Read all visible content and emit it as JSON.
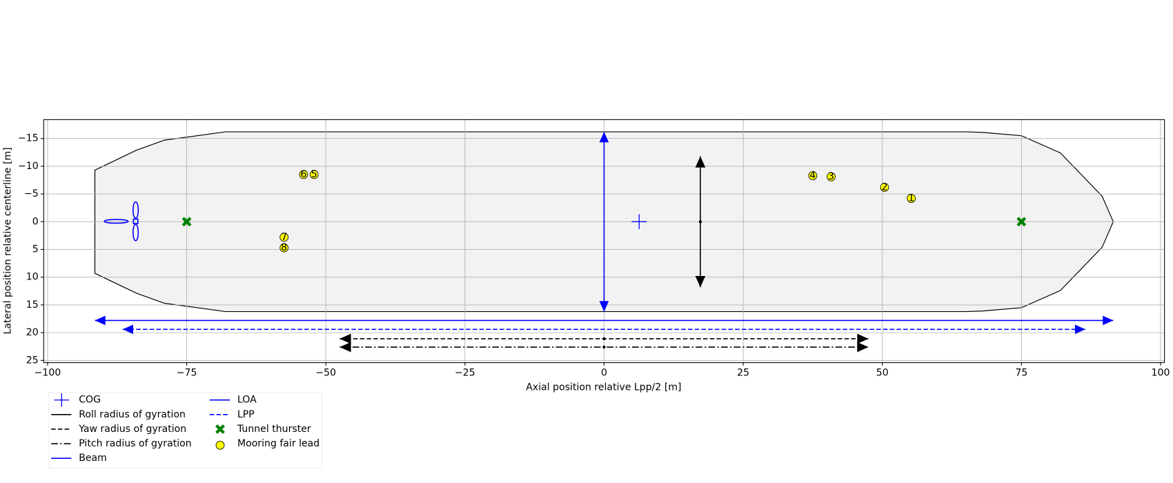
{
  "chart_data": {
    "type": "scatter",
    "xlabel": "Axial position relative Lpp/2 [m]",
    "ylabel": "Lateral position relative centerline [m]",
    "xlim": [
      -100.7,
      100.7
    ],
    "ylim": [
      -18.4,
      25.4
    ],
    "y_inverted": true,
    "grid": true,
    "xticks": [
      {
        "value": -100,
        "label": "−100"
      },
      {
        "value": -75,
        "label": "−75"
      },
      {
        "value": -50,
        "label": "−50"
      },
      {
        "value": -25,
        "label": "−25"
      },
      0,
      25,
      50,
      75,
      100
    ],
    "yticks": [
      {
        "value": -15,
        "label": "−15"
      },
      {
        "value": -10,
        "label": "−10"
      },
      {
        "value": -5,
        "label": "−5"
      },
      0,
      5,
      10,
      15,
      20,
      25
    ],
    "hull": {
      "color": "#f2f2f2",
      "x": [
        -91.5,
        -84,
        -79,
        -68,
        65,
        68,
        75,
        82,
        89.5,
        91.5,
        89.5,
        82,
        75,
        68,
        65,
        -68,
        -79,
        -84,
        -91.5
      ],
      "y": [
        -9.3,
        -12.9,
        -14.7,
        -16.2,
        -16.2,
        -16.1,
        -15.5,
        -12.4,
        -4.6,
        0,
        4.6,
        12.4,
        15.5,
        16.1,
        16.2,
        16.2,
        14.7,
        12.9,
        9.3
      ]
    },
    "series": [
      {
        "name": "COG",
        "kind": "plus",
        "color": "#0000ff",
        "x": [
          6.3
        ],
        "y": [
          0
        ]
      },
      {
        "name": "Roll radius of gyration",
        "kind": "vdim",
        "dash": "solid",
        "color": "#000000",
        "x": [
          17.3,
          17.3
        ],
        "y": [
          -11.8,
          11.8
        ]
      },
      {
        "name": "Yaw radius of gyration",
        "kind": "hdim",
        "dash": "dashed",
        "color": "#000000",
        "x": [
          -47.5,
          47.5
        ],
        "y": [
          21.1,
          21.1
        ]
      },
      {
        "name": "Pitch radius of gyration",
        "kind": "hdim",
        "dash": "dashdot",
        "color": "#000000",
        "x": [
          -47.5,
          47.5
        ],
        "y": [
          22.6,
          22.6
        ]
      },
      {
        "name": "Beam",
        "kind": "vdim",
        "dash": "solid",
        "color": "#0000ff",
        "x": [
          0,
          0
        ],
        "y": [
          -16.2,
          16.2
        ]
      },
      {
        "name": "LOA",
        "kind": "hdim",
        "dash": "solid",
        "color": "#0000ff",
        "x": [
          -91.5,
          91.5
        ],
        "y": [
          17.8,
          17.8
        ]
      },
      {
        "name": "LPP",
        "kind": "hdim",
        "dash": "dashed",
        "color": "#0000ff",
        "x": [
          -86.5,
          86.5
        ],
        "y": [
          19.4,
          19.4
        ]
      },
      {
        "name": "Tunnel thurster",
        "kind": "x",
        "color": "#008000",
        "x": [
          -75,
          75
        ],
        "y": [
          0,
          0
        ]
      },
      {
        "name": "Mooring fair lead",
        "kind": "circle",
        "color": "#ffff00",
        "x": [
          55.2,
          50.4,
          40.8,
          37.5,
          -52.1,
          -54.0,
          -57.5,
          -57.5
        ],
        "y": [
          -4.2,
          -6.2,
          -8.1,
          -8.3,
          -8.5,
          -8.5,
          2.8,
          4.7
        ],
        "point_labels": [
          "1",
          "2",
          "3",
          "4",
          "5",
          "6",
          "7",
          "8"
        ]
      }
    ],
    "legend": "below left"
  }
}
